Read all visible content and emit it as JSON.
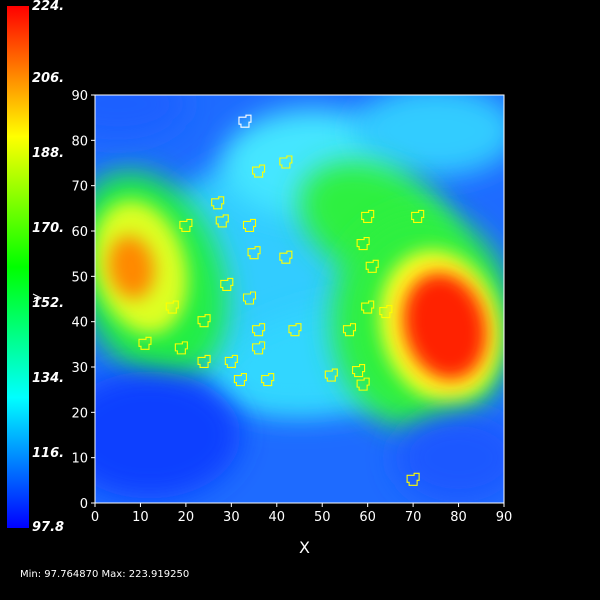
{
  "chart_data": {
    "type": "heatmap",
    "title": "",
    "xlabel": "X",
    "ylabel": "",
    "xlim": [
      0,
      90
    ],
    "ylim": [
      0,
      90
    ],
    "x_ticks": [
      "0",
      "10",
      "20",
      "30",
      "40",
      "50",
      "60",
      "70",
      "80",
      "90"
    ],
    "y_ticks": [
      "0",
      "10",
      "20",
      "30",
      "40",
      "50",
      "60",
      "70",
      "80",
      "90"
    ],
    "colorscale": [
      "#0000ff",
      "#00ffff",
      "#00ff00",
      "#ffff00",
      "#ff0000"
    ],
    "colorbar": {
      "min": 97.76487,
      "max": 223.91925,
      "tick_labels": [
        "224.",
        "206.",
        "188.",
        "170.",
        "152.",
        "134.",
        "116.",
        "97.8"
      ]
    },
    "features": [
      {
        "x": 8,
        "y": 52,
        "value": 210
      },
      {
        "x": 77,
        "y": 39,
        "value": 224
      },
      {
        "x": 48,
        "y": 78,
        "value": 150
      },
      {
        "x": 62,
        "y": 70,
        "value": 175
      }
    ],
    "contour_points": [
      {
        "x": 33,
        "y": 84,
        "color": "#ffffff"
      },
      {
        "x": 42,
        "y": 75,
        "color": "#ffff00"
      },
      {
        "x": 36,
        "y": 73,
        "color": "#ffff00"
      },
      {
        "x": 27,
        "y": 66,
        "color": "#ffff00"
      },
      {
        "x": 28,
        "y": 62,
        "color": "#ffff00"
      },
      {
        "x": 20,
        "y": 61,
        "color": "#ffff00"
      },
      {
        "x": 34,
        "y": 61,
        "color": "#ffff00"
      },
      {
        "x": 35,
        "y": 55,
        "color": "#ffff00"
      },
      {
        "x": 42,
        "y": 54,
        "color": "#ffff00"
      },
      {
        "x": 29,
        "y": 48,
        "color": "#ffff00"
      },
      {
        "x": 34,
        "y": 45,
        "color": "#ffff00"
      },
      {
        "x": 17,
        "y": 43,
        "color": "#ffff00"
      },
      {
        "x": 24,
        "y": 40,
        "color": "#ffff00"
      },
      {
        "x": 36,
        "y": 38,
        "color": "#ffff00"
      },
      {
        "x": 44,
        "y": 38,
        "color": "#ffff00"
      },
      {
        "x": 11,
        "y": 35,
        "color": "#ffff00"
      },
      {
        "x": 19,
        "y": 34,
        "color": "#ffff00"
      },
      {
        "x": 36,
        "y": 34,
        "color": "#ffff00"
      },
      {
        "x": 24,
        "y": 31,
        "color": "#ffff00"
      },
      {
        "x": 30,
        "y": 31,
        "color": "#ffff00"
      },
      {
        "x": 32,
        "y": 27,
        "color": "#ffff00"
      },
      {
        "x": 38,
        "y": 27,
        "color": "#ffff00"
      },
      {
        "x": 52,
        "y": 28,
        "color": "#ffff00"
      },
      {
        "x": 58,
        "y": 29,
        "color": "#ffff00"
      },
      {
        "x": 59,
        "y": 26,
        "color": "#ffff00"
      },
      {
        "x": 56,
        "y": 38,
        "color": "#ffff00"
      },
      {
        "x": 60,
        "y": 43,
        "color": "#ffff00"
      },
      {
        "x": 64,
        "y": 42,
        "color": "#ffff00"
      },
      {
        "x": 61,
        "y": 52,
        "color": "#ffff00"
      },
      {
        "x": 59,
        "y": 57,
        "color": "#ffff00"
      },
      {
        "x": 60,
        "y": 63,
        "color": "#ffff00"
      },
      {
        "x": 71,
        "y": 63,
        "color": "#ffff00"
      },
      {
        "x": 70,
        "y": 5,
        "color": "#ffff00"
      }
    ]
  },
  "footer": {
    "minmax_text": "Min: 97.764870 Max: 223.919250"
  }
}
